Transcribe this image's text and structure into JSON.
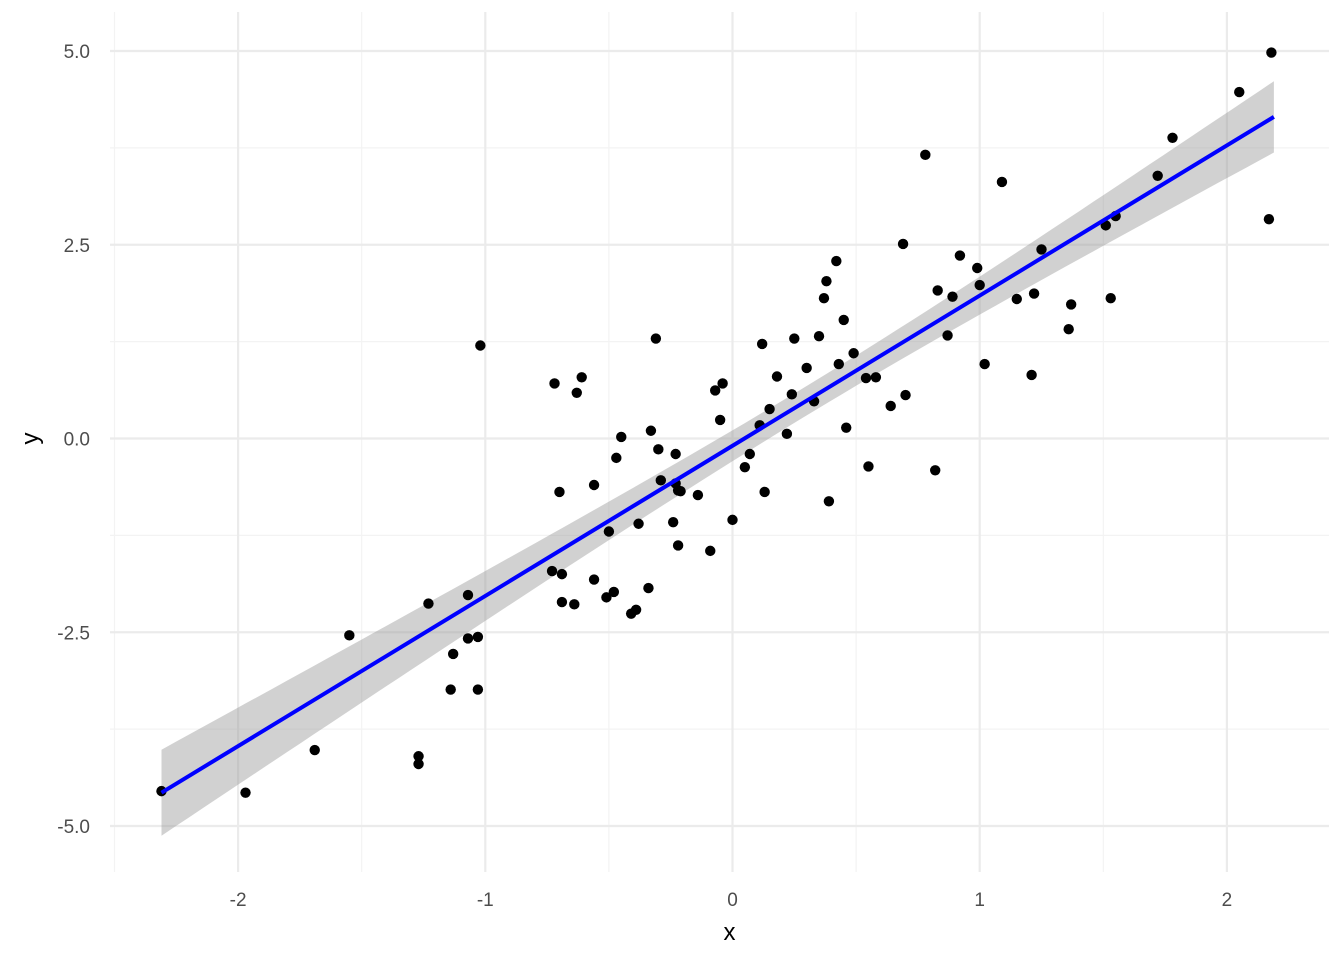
{
  "chart_data": {
    "type": "scatter",
    "title": "",
    "xlabel": "x",
    "ylabel": "y",
    "xlim": [
      -2.5,
      2.4
    ],
    "ylim": [
      -5.45,
      5.25
    ],
    "x_ticks": [
      -2,
      -1,
      0,
      1,
      2
    ],
    "x_tick_labels": [
      "-2",
      "-1",
      "0",
      "1",
      "2"
    ],
    "y_ticks": [
      -5,
      -2.5,
      0,
      2.5,
      5
    ],
    "y_tick_labels": [
      "-5.0",
      "-2.5",
      "0.0",
      "2.5",
      "5.0"
    ],
    "grid": true,
    "legend": "none",
    "colors": {
      "points": "#000000",
      "fit_line": "#0000ff",
      "confidence_band": "#999999",
      "grid_major": "#ebebeb",
      "grid_minor": "#f3f3f3"
    },
    "fit": {
      "method": "linear",
      "start": [
        -2.31,
        -4.57
      ],
      "end": [
        2.19,
        4.15
      ],
      "band_start": [
        -2.31,
        -5.13,
        -4.02
      ],
      "band_min_x": 0.3,
      "band_min_halfwidth": 0.19,
      "band_end": [
        2.19,
        3.7,
        4.62
      ]
    },
    "points": [
      {
        "x": -2.31,
        "y": -4.55
      },
      {
        "x": -1.97,
        "y": -4.57
      },
      {
        "x": -1.69,
        "y": -4.02
      },
      {
        "x": -1.55,
        "y": -2.54
      },
      {
        "x": -1.27,
        "y": -4.1
      },
      {
        "x": -1.27,
        "y": -4.2
      },
      {
        "x": -1.23,
        "y": -2.13
      },
      {
        "x": -1.14,
        "y": -3.24
      },
      {
        "x": -1.13,
        "y": -2.78
      },
      {
        "x": -1.07,
        "y": -2.58
      },
      {
        "x": -1.07,
        "y": -2.02
      },
      {
        "x": -1.03,
        "y": -2.56
      },
      {
        "x": -1.03,
        "y": -3.24
      },
      {
        "x": -1.02,
        "y": 1.2
      },
      {
        "x": -0.73,
        "y": -1.71
      },
      {
        "x": -0.72,
        "y": 0.71
      },
      {
        "x": -0.7,
        "y": -0.69
      },
      {
        "x": -0.69,
        "y": -1.75
      },
      {
        "x": -0.69,
        "y": -2.11
      },
      {
        "x": -0.64,
        "y": -2.14
      },
      {
        "x": -0.63,
        "y": 0.59
      },
      {
        "x": -0.61,
        "y": 0.79
      },
      {
        "x": -0.56,
        "y": -0.6
      },
      {
        "x": -0.56,
        "y": -1.82
      },
      {
        "x": -0.51,
        "y": -2.05
      },
      {
        "x": -0.5,
        "y": -1.2
      },
      {
        "x": -0.48,
        "y": -1.98
      },
      {
        "x": -0.47,
        "y": -0.25
      },
      {
        "x": -0.45,
        "y": 0.02
      },
      {
        "x": -0.41,
        "y": -2.26
      },
      {
        "x": -0.39,
        "y": -2.21
      },
      {
        "x": -0.38,
        "y": -1.1
      },
      {
        "x": -0.34,
        "y": -1.93
      },
      {
        "x": -0.33,
        "y": 0.1
      },
      {
        "x": -0.31,
        "y": 1.29
      },
      {
        "x": -0.3,
        "y": -0.14
      },
      {
        "x": -0.29,
        "y": -0.54
      },
      {
        "x": -0.24,
        "y": -1.08
      },
      {
        "x": -0.23,
        "y": -0.2
      },
      {
        "x": -0.23,
        "y": -0.58
      },
      {
        "x": -0.22,
        "y": -0.67
      },
      {
        "x": -0.22,
        "y": -1.38
      },
      {
        "x": -0.21,
        "y": -0.68
      },
      {
        "x": -0.14,
        "y": -0.73
      },
      {
        "x": -0.09,
        "y": -1.45
      },
      {
        "x": -0.07,
        "y": 0.62
      },
      {
        "x": -0.05,
        "y": 0.24
      },
      {
        "x": -0.04,
        "y": 0.71
      },
      {
        "x": 0.0,
        "y": -1.05
      },
      {
        "x": 0.05,
        "y": -0.37
      },
      {
        "x": 0.07,
        "y": -0.2
      },
      {
        "x": 0.11,
        "y": 0.17
      },
      {
        "x": 0.12,
        "y": 1.22
      },
      {
        "x": 0.13,
        "y": -0.69
      },
      {
        "x": 0.15,
        "y": 0.38
      },
      {
        "x": 0.18,
        "y": 0.8
      },
      {
        "x": 0.22,
        "y": 0.06
      },
      {
        "x": 0.24,
        "y": 0.57
      },
      {
        "x": 0.25,
        "y": 1.29
      },
      {
        "x": 0.3,
        "y": 0.91
      },
      {
        "x": 0.33,
        "y": 0.48
      },
      {
        "x": 0.35,
        "y": 1.32
      },
      {
        "x": 0.37,
        "y": 1.81
      },
      {
        "x": 0.38,
        "y": 2.03
      },
      {
        "x": 0.39,
        "y": -0.81
      },
      {
        "x": 0.42,
        "y": 2.29
      },
      {
        "x": 0.43,
        "y": 0.96
      },
      {
        "x": 0.45,
        "y": 1.53
      },
      {
        "x": 0.46,
        "y": 0.14
      },
      {
        "x": 0.49,
        "y": 1.1
      },
      {
        "x": 0.54,
        "y": 0.78
      },
      {
        "x": 0.55,
        "y": -0.36
      },
      {
        "x": 0.58,
        "y": 0.79
      },
      {
        "x": 0.64,
        "y": 0.42
      },
      {
        "x": 0.69,
        "y": 2.51
      },
      {
        "x": 0.7,
        "y": 0.56
      },
      {
        "x": 0.78,
        "y": 3.66
      },
      {
        "x": 0.82,
        "y": -0.41
      },
      {
        "x": 0.83,
        "y": 1.91
      },
      {
        "x": 0.87,
        "y": 1.33
      },
      {
        "x": 0.89,
        "y": 1.83
      },
      {
        "x": 0.92,
        "y": 2.36
      },
      {
        "x": 0.99,
        "y": 2.2
      },
      {
        "x": 1.0,
        "y": 1.98
      },
      {
        "x": 1.02,
        "y": 0.96
      },
      {
        "x": 1.09,
        "y": 3.31
      },
      {
        "x": 1.15,
        "y": 1.8
      },
      {
        "x": 1.21,
        "y": 0.82
      },
      {
        "x": 1.22,
        "y": 1.87
      },
      {
        "x": 1.25,
        "y": 2.44
      },
      {
        "x": 1.36,
        "y": 1.41
      },
      {
        "x": 1.37,
        "y": 1.73
      },
      {
        "x": 1.51,
        "y": 2.75
      },
      {
        "x": 1.53,
        "y": 1.81
      },
      {
        "x": 1.55,
        "y": 2.87
      },
      {
        "x": 1.72,
        "y": 3.39
      },
      {
        "x": 1.78,
        "y": 3.88
      },
      {
        "x": 2.05,
        "y": 4.47
      },
      {
        "x": 2.17,
        "y": 2.83
      },
      {
        "x": 2.18,
        "y": 4.98
      }
    ]
  }
}
